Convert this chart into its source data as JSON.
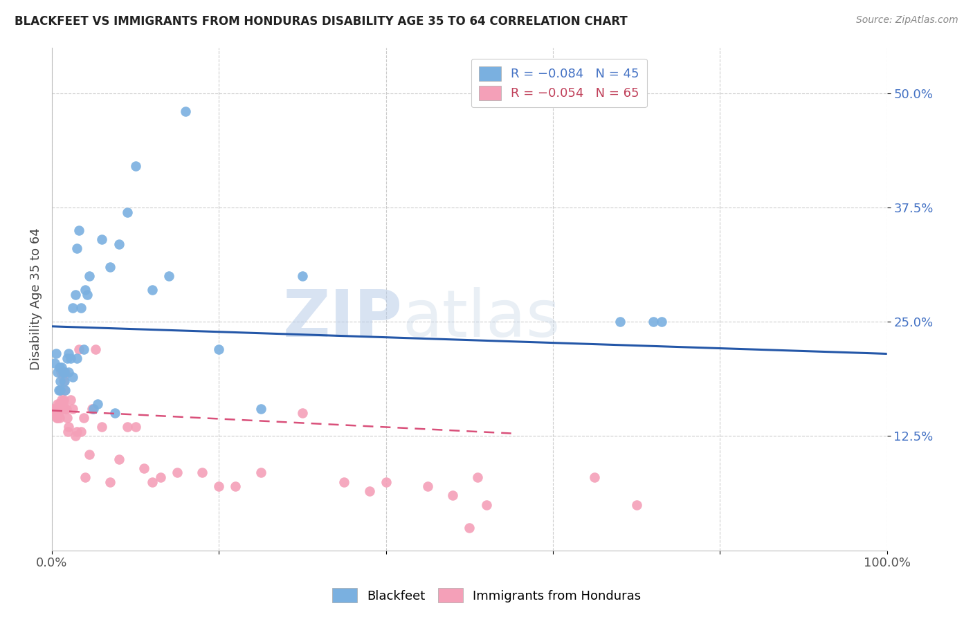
{
  "title": "BLACKFEET VS IMMIGRANTS FROM HONDURAS DISABILITY AGE 35 TO 64 CORRELATION CHART",
  "source": "Source: ZipAtlas.com",
  "ylabel": "Disability Age 35 to 64",
  "ytick_labels": [
    "12.5%",
    "25.0%",
    "37.5%",
    "50.0%"
  ],
  "ytick_values": [
    0.125,
    0.25,
    0.375,
    0.5
  ],
  "xlim": [
    0.0,
    1.0
  ],
  "ylim": [
    0.0,
    0.55
  ],
  "blue_color": "#7ab0e0",
  "pink_color": "#f4a0b8",
  "blue_line_color": "#2457a8",
  "pink_line_color": "#d9507a",
  "watermark_zip": "ZIP",
  "watermark_atlas": "atlas",
  "blue_x": [
    0.003,
    0.005,
    0.007,
    0.008,
    0.009,
    0.01,
    0.01,
    0.012,
    0.013,
    0.014,
    0.015,
    0.015,
    0.016,
    0.018,
    0.02,
    0.02,
    0.022,
    0.025,
    0.025,
    0.028,
    0.03,
    0.03,
    0.032,
    0.035,
    0.038,
    0.04,
    0.042,
    0.045,
    0.05,
    0.055,
    0.06,
    0.07,
    0.075,
    0.08,
    0.09,
    0.1,
    0.12,
    0.14,
    0.16,
    0.2,
    0.25,
    0.3,
    0.68,
    0.72,
    0.73
  ],
  "blue_y": [
    0.205,
    0.215,
    0.195,
    0.175,
    0.2,
    0.185,
    0.175,
    0.2,
    0.195,
    0.195,
    0.195,
    0.185,
    0.175,
    0.21,
    0.195,
    0.215,
    0.21,
    0.19,
    0.265,
    0.28,
    0.33,
    0.21,
    0.35,
    0.265,
    0.22,
    0.285,
    0.28,
    0.3,
    0.155,
    0.16,
    0.34,
    0.31,
    0.15,
    0.335,
    0.37,
    0.42,
    0.285,
    0.3,
    0.48,
    0.22,
    0.155,
    0.3,
    0.25,
    0.25,
    0.25
  ],
  "pink_x": [
    0.002,
    0.003,
    0.004,
    0.005,
    0.006,
    0.006,
    0.007,
    0.007,
    0.008,
    0.008,
    0.009,
    0.009,
    0.01,
    0.01,
    0.011,
    0.011,
    0.012,
    0.012,
    0.013,
    0.013,
    0.014,
    0.014,
    0.015,
    0.015,
    0.016,
    0.016,
    0.017,
    0.018,
    0.019,
    0.02,
    0.022,
    0.025,
    0.028,
    0.03,
    0.032,
    0.035,
    0.038,
    0.04,
    0.045,
    0.048,
    0.052,
    0.06,
    0.07,
    0.08,
    0.09,
    0.1,
    0.11,
    0.12,
    0.13,
    0.15,
    0.18,
    0.2,
    0.22,
    0.25,
    0.3,
    0.35,
    0.38,
    0.4,
    0.45,
    0.48,
    0.5,
    0.51,
    0.52,
    0.65,
    0.7
  ],
  "pink_y": [
    0.155,
    0.155,
    0.15,
    0.155,
    0.145,
    0.15,
    0.16,
    0.145,
    0.155,
    0.15,
    0.16,
    0.145,
    0.155,
    0.175,
    0.16,
    0.195,
    0.165,
    0.155,
    0.16,
    0.19,
    0.185,
    0.165,
    0.175,
    0.155,
    0.155,
    0.195,
    0.155,
    0.145,
    0.13,
    0.135,
    0.165,
    0.155,
    0.125,
    0.13,
    0.22,
    0.13,
    0.145,
    0.08,
    0.105,
    0.155,
    0.22,
    0.135,
    0.075,
    0.1,
    0.135,
    0.135,
    0.09,
    0.075,
    0.08,
    0.085,
    0.085,
    0.07,
    0.07,
    0.085,
    0.15,
    0.075,
    0.065,
    0.075,
    0.07,
    0.06,
    0.025,
    0.08,
    0.05,
    0.08,
    0.05
  ],
  "blue_regline_x": [
    0.0,
    1.0
  ],
  "blue_regline_y": [
    0.245,
    0.215
  ],
  "pink_regline_x": [
    0.0,
    0.55
  ],
  "pink_regline_y": [
    0.153,
    0.128
  ]
}
